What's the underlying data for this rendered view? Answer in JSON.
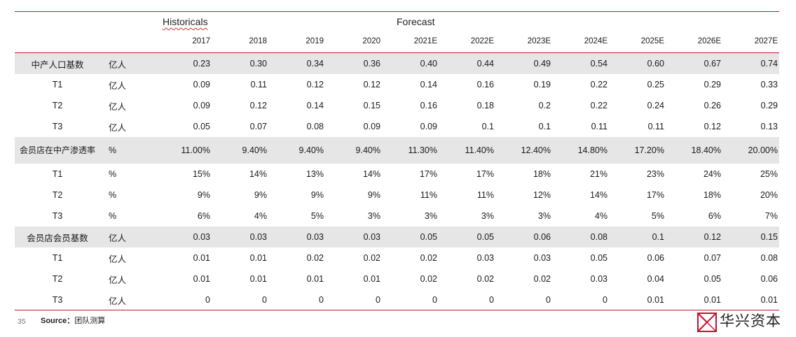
{
  "header": {
    "historicals_label": "Historicals",
    "forecast_label": "Forecast",
    "years": [
      "2017",
      "2018",
      "2019",
      "2020",
      "2021E",
      "2022E",
      "2023E",
      "2024E",
      "2025E",
      "2026E",
      "2027E"
    ]
  },
  "rows": [
    {
      "label": "中产人口基数",
      "unit": "亿人",
      "values": [
        "0.23",
        "0.30",
        "0.34",
        "0.36",
        "0.40",
        "0.44",
        "0.49",
        "0.54",
        "0.60",
        "0.67",
        "0.74"
      ]
    },
    {
      "label": "T1",
      "unit": "亿人",
      "values": [
        "0.09",
        "0.11",
        "0.12",
        "0.12",
        "0.14",
        "0.16",
        "0.19",
        "0.22",
        "0.25",
        "0.29",
        "0.33"
      ]
    },
    {
      "label": "T2",
      "unit": "亿人",
      "values": [
        "0.09",
        "0.12",
        "0.14",
        "0.15",
        "0.16",
        "0.18",
        "0.2",
        "0.22",
        "0.24",
        "0.26",
        "0.29"
      ]
    },
    {
      "label": "T3",
      "unit": "亿人",
      "values": [
        "0.05",
        "0.07",
        "0.08",
        "0.09",
        "0.09",
        "0.1",
        "0.1",
        "0.11",
        "0.11",
        "0.12",
        "0.13"
      ]
    },
    {
      "label": "会员店在中产渗透率",
      "unit": "%",
      "values": [
        "11.00%",
        "9.40%",
        "9.40%",
        "9.40%",
        "11.30%",
        "11.40%",
        "12.40%",
        "14.80%",
        "17.20%",
        "18.40%",
        "20.00%"
      ]
    },
    {
      "label": "T1",
      "unit": "%",
      "values": [
        "15%",
        "14%",
        "13%",
        "14%",
        "17%",
        "17%",
        "18%",
        "21%",
        "23%",
        "24%",
        "25%"
      ]
    },
    {
      "label": "T2",
      "unit": "%",
      "values": [
        "9%",
        "9%",
        "9%",
        "9%",
        "11%",
        "11%",
        "12%",
        "14%",
        "17%",
        "18%",
        "20%"
      ]
    },
    {
      "label": "T3",
      "unit": "%",
      "values": [
        "6%",
        "4%",
        "5%",
        "3%",
        "3%",
        "3%",
        "3%",
        "4%",
        "5%",
        "6%",
        "7%"
      ]
    },
    {
      "label": "会员店会员基数",
      "unit": "亿人",
      "values": [
        "0.03",
        "0.03",
        "0.03",
        "0.03",
        "0.05",
        "0.05",
        "0.06",
        "0.08",
        "0.1",
        "0.12",
        "0.15"
      ]
    },
    {
      "label": "T1",
      "unit": "亿人",
      "values": [
        "0.01",
        "0.01",
        "0.02",
        "0.02",
        "0.02",
        "0.03",
        "0.03",
        "0.05",
        "0.06",
        "0.07",
        "0.08"
      ]
    },
    {
      "label": "T2",
      "unit": "亿人",
      "values": [
        "0.01",
        "0.01",
        "0.01",
        "0.01",
        "0.02",
        "0.02",
        "0.02",
        "0.03",
        "0.04",
        "0.05",
        "0.06"
      ]
    },
    {
      "label": "T3",
      "unit": "亿人",
      "values": [
        "0",
        "0",
        "0",
        "0",
        "0",
        "0",
        "0",
        "0",
        "0.01",
        "0.01",
        "0.01"
      ]
    }
  ],
  "footer": {
    "page_number": "35",
    "source_label": "Source：",
    "source_text": "团队测算",
    "logo_text": "华兴资本"
  },
  "colors": {
    "accent": "#c8102e",
    "shade": "#e6e6e6"
  }
}
